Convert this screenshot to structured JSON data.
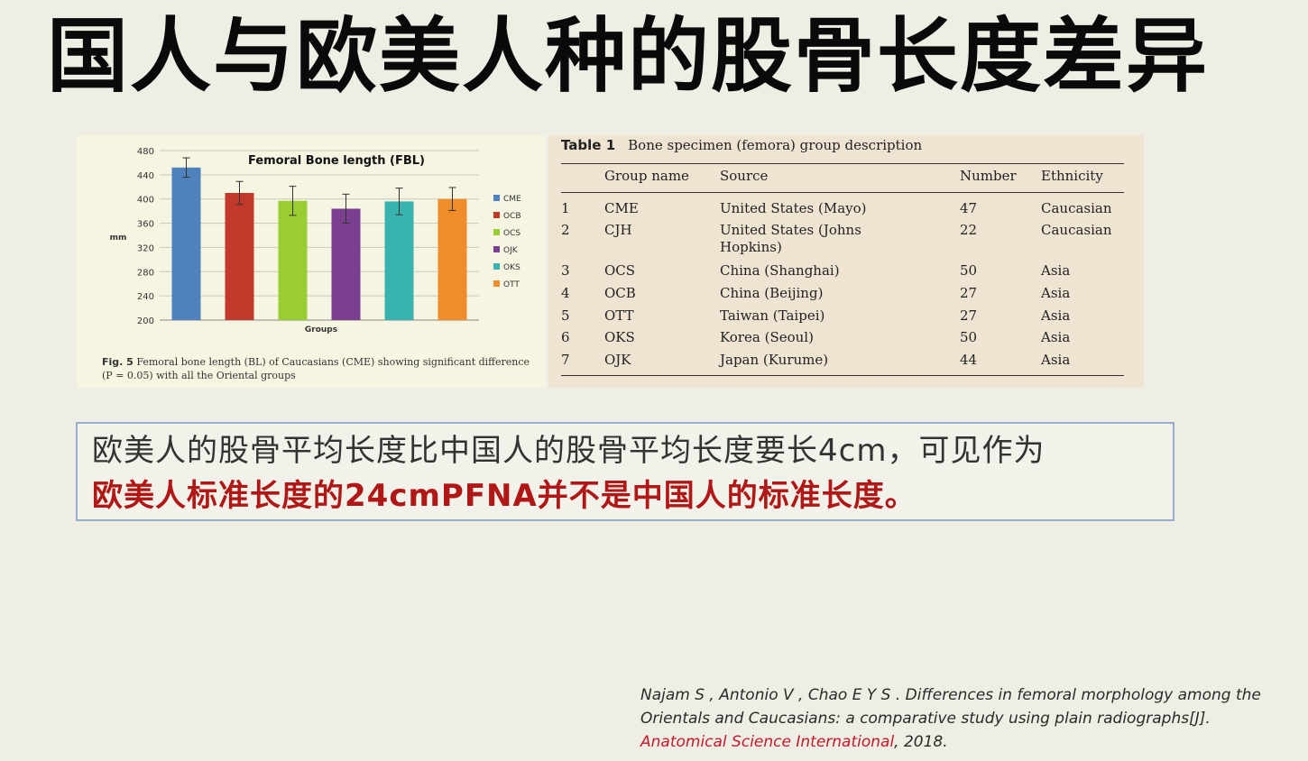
{
  "slide_title": "国人与欧美人种的股骨长度差异",
  "chart_data": {
    "type": "bar",
    "title": "Femoral Bone length (FBL)",
    "xlabel": "Groups",
    "ylabel": "mm",
    "ylim": [
      200,
      480
    ],
    "yticks": [
      "480",
      "440",
      "400",
      "360",
      "320",
      "280",
      "240",
      "200"
    ],
    "categories": [
      "CME",
      "OCB",
      "OCS",
      "OJK",
      "OKS",
      "OTT"
    ],
    "values": [
      452,
      410,
      397,
      384,
      396,
      400
    ],
    "errors": [
      16,
      19,
      24,
      24,
      22,
      19
    ],
    "colors": [
      "#4f81bd",
      "#c0392b",
      "#9acd32",
      "#7b3f8f",
      "#39b3b0",
      "#f08c2a"
    ],
    "legend_position": "right",
    "grid": true
  },
  "figure_caption": {
    "label": "Fig. 5",
    "text": "Femoral bone length (BL) of Caucasians (CME) showing significant difference (P = 0.05) with all the Oriental groups"
  },
  "table": {
    "label": "Table 1",
    "caption": "Bone specimen (femora) group description",
    "headers": [
      "",
      "Group name",
      "Source",
      "Number",
      "Ethnicity"
    ],
    "rows": [
      [
        "1",
        "CME",
        "United States (Mayo)",
        "47",
        "Caucasian"
      ],
      [
        "2",
        "CJH",
        "United States (Johns Hopkins)",
        "22",
        "Caucasian"
      ],
      [
        "3",
        "OCS",
        "China (Shanghai)",
        "50",
        "Asia"
      ],
      [
        "4",
        "OCB",
        "China (Beijing)",
        "27",
        "Asia"
      ],
      [
        "5",
        "OTT",
        "Taiwan (Taipei)",
        "27",
        "Asia"
      ],
      [
        "6",
        "OKS",
        "Korea (Seoul)",
        "50",
        "Asia"
      ],
      [
        "7",
        "OJK",
        "Japan (Kurume)",
        "44",
        "Asia"
      ]
    ]
  },
  "note": {
    "line1": "欧美人的股骨平均长度比中国人的股骨平均长度要长4cm，可见作为",
    "line2": "欧美人标准长度的24cmPFNA并不是中国人的标准长度。"
  },
  "reference": {
    "authors_title": "Najam S , Antonio V , Chao E Y S . Differences in femoral morphology among the Orientals and Caucasians: a comparative study using plain radiographs[J].",
    "journal": "Anatomical Science International",
    "year": ", 2018."
  }
}
